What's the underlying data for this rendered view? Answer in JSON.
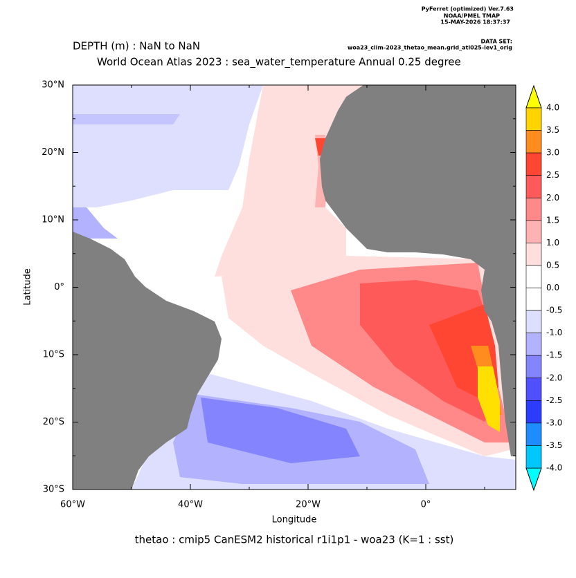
{
  "header": {
    "software": "PyFerret (optimized) Ver.7.63",
    "org": "NOAA/PMEL TMAP",
    "timestamp": "15-MAY-2026 18:37:37",
    "dataset_label": "DATA SET:",
    "dataset": "woa23_clim-2023_thetao_mean.grid_atl025-lev1_orig"
  },
  "title": {
    "depth": "DEPTH (m) : NaN to NaN",
    "main": "World Ocean Atlas 2023 : sea_water_temperature Annual  0.25 degree"
  },
  "axes": {
    "x_label": "Longitude",
    "y_label": "Latitude",
    "x_ticks": [
      "60°W",
      "40°W",
      "20°W",
      "0°"
    ],
    "y_ticks": [
      "30°N",
      "20°N",
      "10°N",
      "0°",
      "10°S",
      "20°S",
      "30°S"
    ]
  },
  "colorbar": {
    "labels": [
      "4.0",
      "3.5",
      "3.0",
      "2.5",
      "2.0",
      "1.5",
      "1.0",
      "0.5",
      "0.0",
      "-0.5",
      "-1.0",
      "-1.5",
      "-2.0",
      "-2.5",
      "-3.0",
      "-3.5",
      "-4.0"
    ],
    "colors": [
      "#ffd400",
      "#ff8c1e",
      "#ff4632",
      "#ff5a5a",
      "#ff8888",
      "#ffb2b2",
      "#ffdede",
      "#ffffff",
      "#ffffff",
      "#dedeff",
      "#b2b2ff",
      "#8484ff",
      "#5050ff",
      "#2c3cff",
      "#1e8cff",
      "#00c8ff"
    ],
    "over_color": "#ffff00",
    "under_color": "#00ffff"
  },
  "footer": "thetao : cmip5 CanESM2 historical r1i1p1 - woa23  (K=1 : sst)"
}
